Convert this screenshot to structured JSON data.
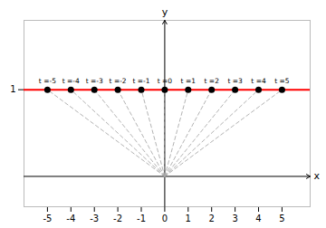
{
  "chart_data": {
    "type": "scatter",
    "xlabel": "x",
    "ylabel": "y",
    "x": [
      -5,
      -4,
      -3,
      -2,
      -1,
      0,
      1,
      2,
      3,
      4,
      5
    ],
    "values": [
      1,
      1,
      1,
      1,
      1,
      1,
      1,
      1,
      1,
      1,
      1
    ],
    "color": "black",
    "reference_lines": [
      {
        "y": 1,
        "color": "red"
      }
    ],
    "arrows": {
      "from": [
        0,
        0
      ],
      "color": "#aaaaaa",
      "line_style": "dashed"
    },
    "annotations": [
      {
        "text": "t =-5",
        "x": -5,
        "y": 1
      },
      {
        "text": "t =-4",
        "x": -4,
        "y": 1
      },
      {
        "text": "t =-3",
        "x": -3,
        "y": 1
      },
      {
        "text": "t =-2",
        "x": -2,
        "y": 1
      },
      {
        "text": "t =-1",
        "x": -1,
        "y": 1
      },
      {
        "text": "t =0",
        "x": 0,
        "y": 1
      },
      {
        "text": "t =1",
        "x": 1,
        "y": 1
      },
      {
        "text": "t =2",
        "x": 2,
        "y": 1
      },
      {
        "text": "t =3",
        "x": 3,
        "y": 1
      },
      {
        "text": "t =4",
        "x": 4,
        "y": 1
      },
      {
        "text": "t =5",
        "x": 5,
        "y": 1
      }
    ],
    "xlim": [
      -6.0,
      6.2
    ],
    "ylim": [
      -0.35,
      1.8
    ],
    "xticks": [
      -5,
      -4,
      -3,
      -2,
      -1,
      0,
      1,
      2,
      3,
      4,
      5
    ],
    "yticks": [
      1
    ],
    "grid": false
  }
}
